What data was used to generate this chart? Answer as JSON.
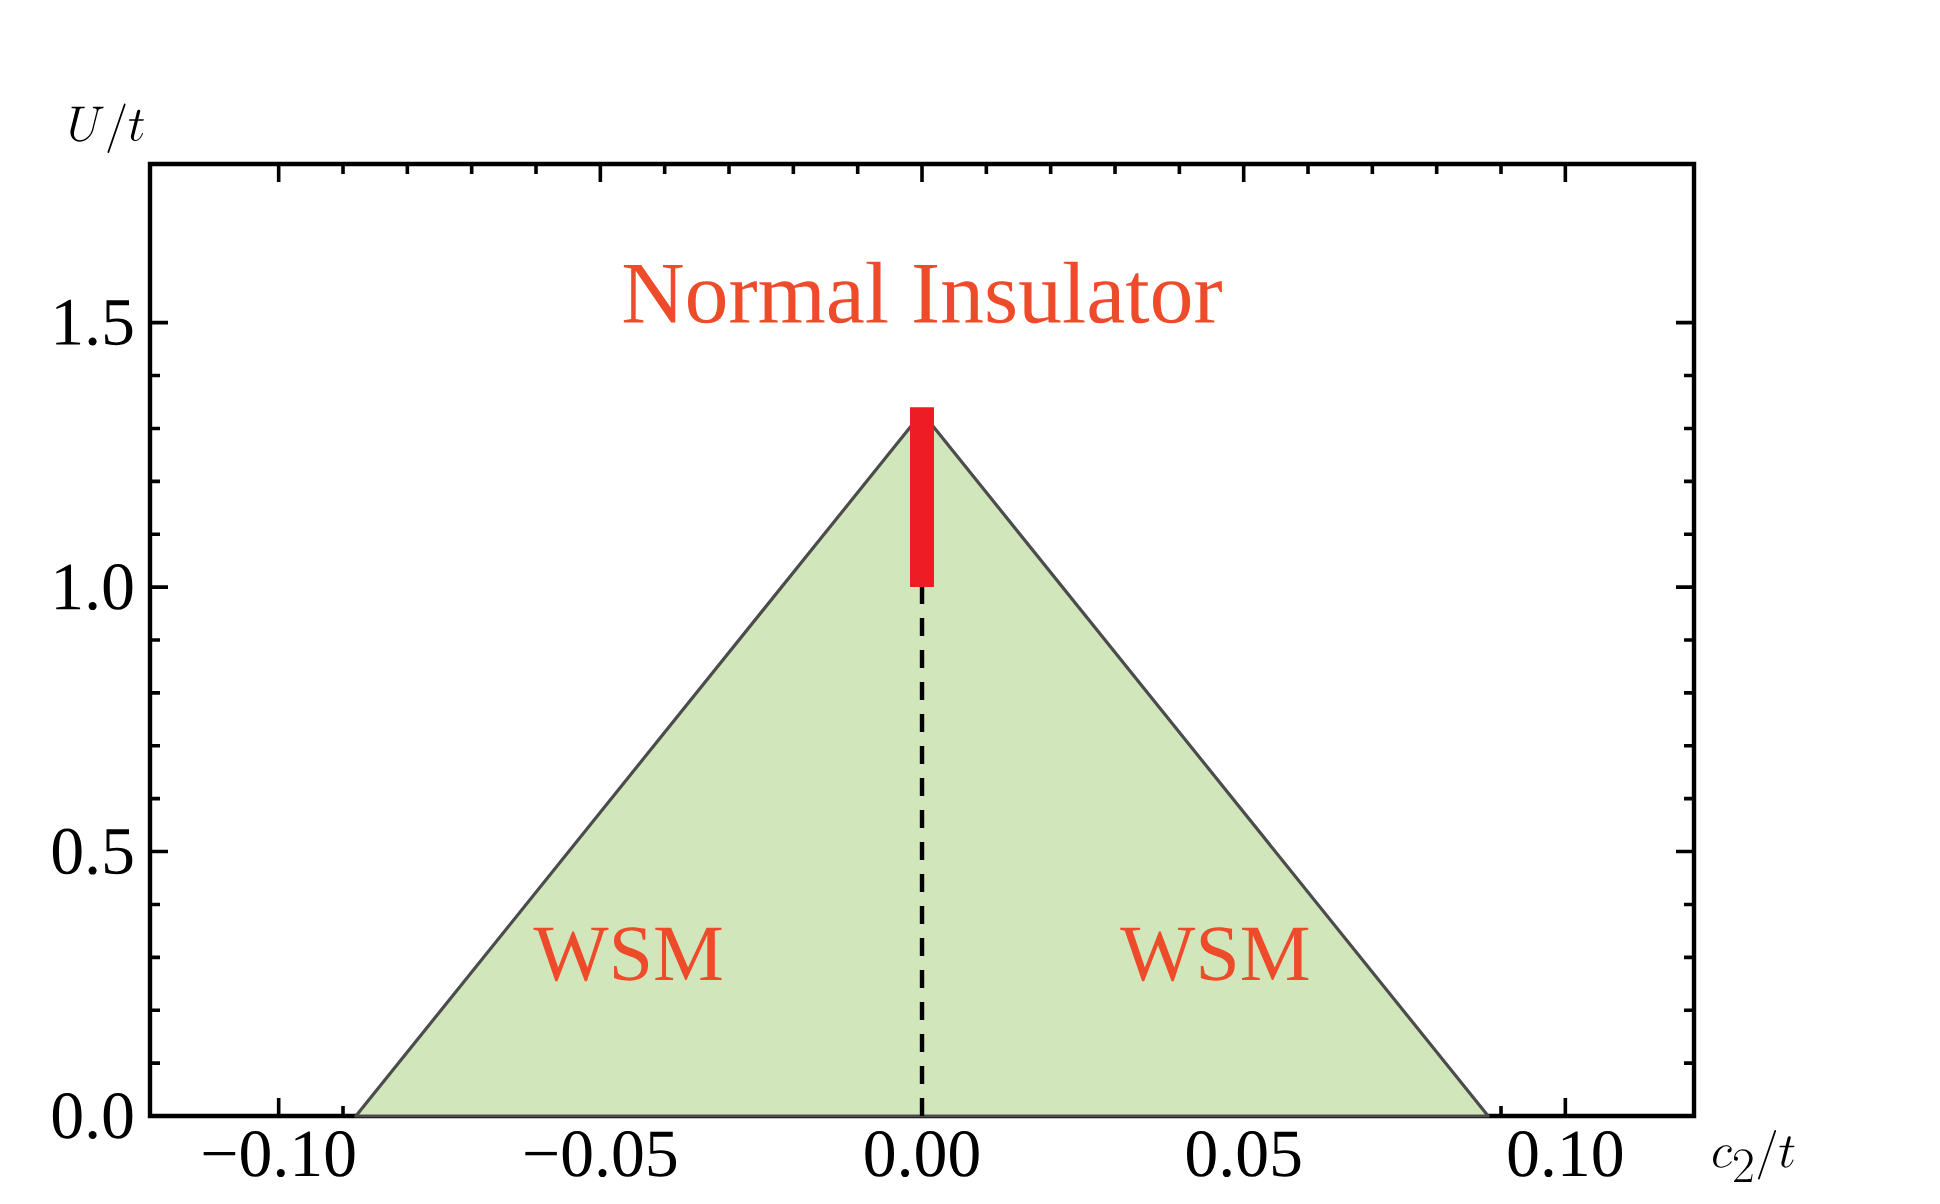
{
  "chart_data": {
    "type": "area",
    "xlabel": "c_2/t",
    "ylabel": "U/t",
    "xlim": [
      -0.12,
      0.12
    ],
    "ylim": [
      0,
      1.8
    ],
    "xticks": [
      {
        "value": -0.1,
        "label": "−0.10"
      },
      {
        "value": -0.05,
        "label": "−0.05"
      },
      {
        "value": 0,
        "label": "0.00"
      },
      {
        "value": 0.05,
        "label": "0.05"
      },
      {
        "value": 0.1,
        "label": "0.10"
      }
    ],
    "yticks": [
      {
        "value": 0,
        "label": "0.0"
      },
      {
        "value": 0.5,
        "label": "0.5"
      },
      {
        "value": 1,
        "label": "1.0"
      },
      {
        "value": 1.5,
        "label": "1.5"
      }
    ],
    "ref_lines": [
      {
        "axis": "x",
        "value": 0,
        "line_style": "dashed",
        "color": "#000000"
      }
    ],
    "series": [
      {
        "color": "#d2e6bc",
        "x": [
          -0.088,
          0,
          0.088
        ],
        "values": [
          0,
          1.33,
          0
        ]
      },
      {
        "type": "line",
        "line_style": "solid",
        "color": "#ee1c25",
        "x": [
          0,
          0
        ],
        "values": [
          1.0,
          1.34
        ]
      }
    ],
    "annotations": [
      "Normal Insulator",
      "WSM",
      "WSM"
    ]
  }
}
